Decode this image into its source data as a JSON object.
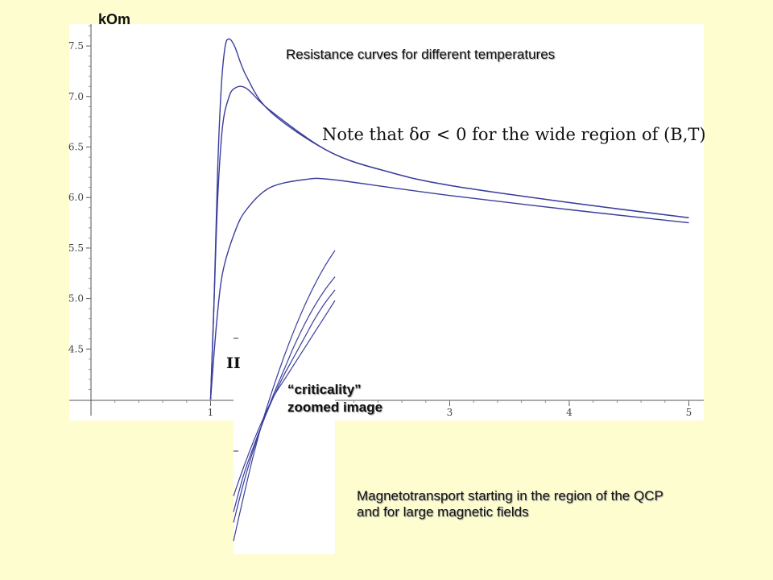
{
  "unit_label": "kOm",
  "note_text": "Note that δσ < 0 for the wide region of (B,T)",
  "roman_label": "II",
  "inset_label": {
    "line1": "“criticality”",
    "line2": "zoomed  image"
  },
  "caption": {
    "line1": "Magnetotransport starting in the region of the QCP",
    "line2": "and for large magnetic fields"
  },
  "colors": {
    "background": "#fdfdd0",
    "curve": "#3a3e9c",
    "plot_bg": "#ffffff"
  },
  "chart_data": [
    {
      "type": "line",
      "title": "Resistance curves for different temperatures",
      "xlabel": "",
      "ylabel": "kOm",
      "xlim": [
        0,
        5.1
      ],
      "ylim": [
        4.0,
        7.8
      ],
      "x_ticks": [
        "1",
        "2",
        "3",
        "4",
        "5"
      ],
      "y_ticks": [
        "4.5",
        "5.0",
        "5.5",
        "6.0",
        "6.5",
        "7.0",
        "7.5"
      ],
      "grid": false,
      "series": [
        {
          "x": [
            1.0,
            1.03,
            1.06,
            1.09,
            1.12,
            1.15,
            1.2,
            1.3,
            1.5,
            2.0,
            2.5,
            3.0,
            4.0,
            5.0
          ],
          "y": [
            4.0,
            5.0,
            6.3,
            7.1,
            7.48,
            7.57,
            7.5,
            7.2,
            6.85,
            6.45,
            6.25,
            6.12,
            5.95,
            5.8
          ]
        },
        {
          "x": [
            1.0,
            1.03,
            1.06,
            1.1,
            1.15,
            1.2,
            1.3,
            1.5,
            2.0,
            2.5,
            3.0,
            4.0,
            5.0
          ],
          "y": [
            4.0,
            5.0,
            6.0,
            6.7,
            6.98,
            7.08,
            7.08,
            6.86,
            6.45,
            6.25,
            6.12,
            5.95,
            5.8
          ]
        },
        {
          "x": [
            1.0,
            1.05,
            1.1,
            1.2,
            1.3,
            1.5,
            1.8,
            2.0,
            2.5,
            3.0,
            4.0,
            5.0
          ],
          "y": [
            4.0,
            4.75,
            5.25,
            5.65,
            5.88,
            6.1,
            6.18,
            6.18,
            6.1,
            6.02,
            5.88,
            5.75
          ]
        }
      ]
    },
    {
      "type": "line",
      "title": "",
      "inset": "criticality zoomed image",
      "grid": false,
      "series": [
        {
          "x": [
            0.0,
            0.1,
            0.2,
            0.3,
            0.4,
            0.5,
            0.6,
            0.7,
            0.8,
            0.9,
            1.0
          ],
          "y": [
            0.22,
            0.33,
            0.43,
            0.52,
            0.6,
            0.66,
            0.72,
            0.78,
            0.84,
            0.9,
            0.96
          ]
        },
        {
          "x": [
            0.0,
            0.1,
            0.2,
            0.3,
            0.4,
            0.5,
            0.6,
            0.7,
            0.8,
            0.9,
            1.0
          ],
          "y": [
            0.16,
            0.3,
            0.41,
            0.51,
            0.6,
            0.68,
            0.75,
            0.82,
            0.89,
            0.95,
            1.0
          ]
        },
        {
          "x": [
            0.0,
            0.1,
            0.2,
            0.3,
            0.4,
            0.5,
            0.6,
            0.7,
            0.8,
            0.9,
            1.0
          ],
          "y": [
            0.12,
            0.27,
            0.4,
            0.51,
            0.61,
            0.7,
            0.79,
            0.87,
            0.94,
            1.0,
            1.05
          ]
        },
        {
          "x": [
            0.0,
            0.1,
            0.2,
            0.3,
            0.4,
            0.5,
            0.6,
            0.7,
            0.8,
            0.9,
            1.0
          ],
          "y": [
            0.05,
            0.22,
            0.38,
            0.52,
            0.64,
            0.75,
            0.85,
            0.94,
            1.02,
            1.09,
            1.15
          ]
        }
      ]
    }
  ]
}
